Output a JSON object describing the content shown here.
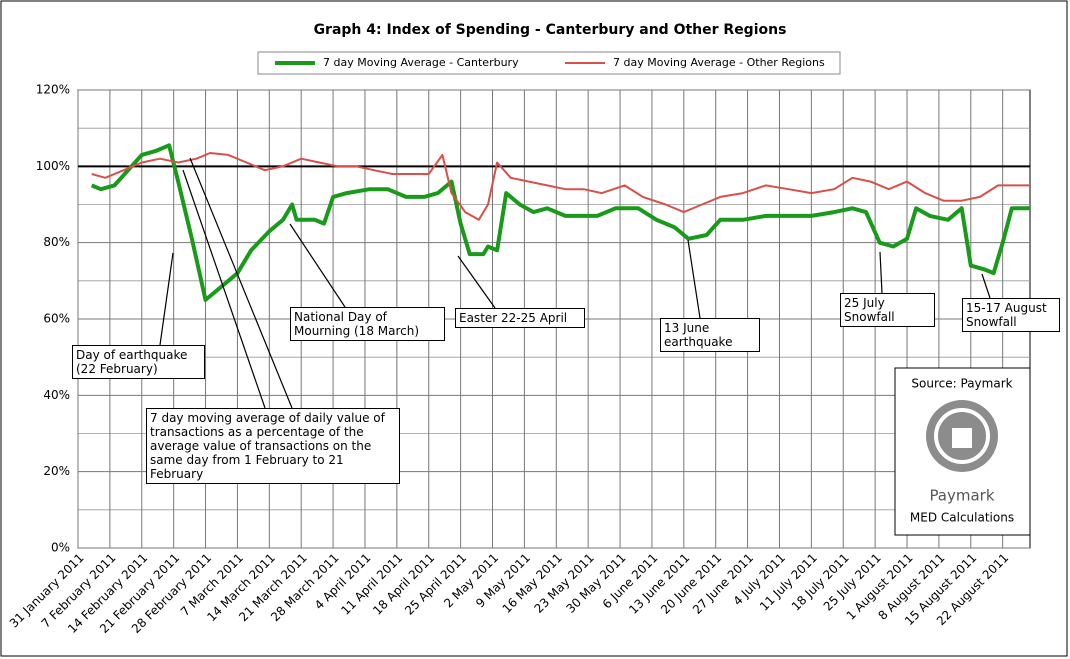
{
  "chart_data": {
    "type": "line",
    "title": "Graph 4: Index of Spending - Canterbury and Other Regions",
    "series": [
      {
        "name": "7 day Moving Average - Canterbury",
        "color": "#1a9a1a",
        "width": 4,
        "x": [
          "2011-02-03",
          "2011-02-05",
          "2011-02-08",
          "2011-02-11",
          "2011-02-14",
          "2011-02-17",
          "2011-02-20",
          "2011-02-22",
          "2011-02-25",
          "2011-02-28",
          "2011-03-03",
          "2011-03-07",
          "2011-03-10",
          "2011-03-14",
          "2011-03-17",
          "2011-03-19",
          "2011-03-20",
          "2011-03-24",
          "2011-03-26",
          "2011-03-28",
          "2011-03-31",
          "2011-04-05",
          "2011-04-09",
          "2011-04-13",
          "2011-04-17",
          "2011-04-20",
          "2011-04-23",
          "2011-04-25",
          "2011-04-27",
          "2011-04-30",
          "2011-05-01",
          "2011-05-03",
          "2011-05-05",
          "2011-05-08",
          "2011-05-11",
          "2011-05-14",
          "2011-05-18",
          "2011-05-22",
          "2011-05-25",
          "2011-05-29",
          "2011-06-03",
          "2011-06-07",
          "2011-06-11",
          "2011-06-14",
          "2011-06-18",
          "2011-06-21",
          "2011-06-26",
          "2011-07-01",
          "2011-07-06",
          "2011-07-11",
          "2011-07-16",
          "2011-07-20",
          "2011-07-23",
          "2011-07-26",
          "2011-07-29",
          "2011-08-01",
          "2011-08-03",
          "2011-08-06",
          "2011-08-10",
          "2011-08-13",
          "2011-08-15",
          "2011-08-18",
          "2011-08-20",
          "2011-08-22",
          "2011-08-24",
          "2011-08-28"
        ],
        "values": [
          95,
          94,
          95,
          99,
          103,
          104,
          105.5,
          96,
          81,
          65,
          68,
          72,
          78,
          83,
          86,
          90,
          86,
          86,
          85,
          92,
          93,
          94,
          94,
          92,
          92,
          93,
          96,
          85,
          77,
          77,
          79,
          78,
          93,
          90,
          88,
          89,
          87,
          87,
          87,
          89,
          89,
          86,
          84,
          81,
          82,
          86,
          86,
          87,
          87,
          87,
          88,
          89,
          88,
          80,
          79,
          81,
          89,
          87,
          86,
          89,
          74,
          73,
          72,
          80,
          89,
          89
        ]
      },
      {
        "name": "7 day Moving Average - Other Regions",
        "color": "#d9504a",
        "width": 2,
        "x": [
          "2011-02-03",
          "2011-02-06",
          "2011-02-10",
          "2011-02-14",
          "2011-02-18",
          "2011-02-22",
          "2011-02-26",
          "2011-03-01",
          "2011-03-05",
          "2011-03-09",
          "2011-03-13",
          "2011-03-17",
          "2011-03-21",
          "2011-03-25",
          "2011-03-29",
          "2011-04-02",
          "2011-04-06",
          "2011-04-10",
          "2011-04-14",
          "2011-04-18",
          "2011-04-21",
          "2011-04-23",
          "2011-04-26",
          "2011-04-29",
          "2011-05-01",
          "2011-05-03",
          "2011-05-06",
          "2011-05-10",
          "2011-05-14",
          "2011-05-18",
          "2011-05-22",
          "2011-05-26",
          "2011-05-31",
          "2011-06-04",
          "2011-06-09",
          "2011-06-13",
          "2011-06-17",
          "2011-06-21",
          "2011-06-26",
          "2011-07-01",
          "2011-07-06",
          "2011-07-11",
          "2011-07-16",
          "2011-07-20",
          "2011-07-24",
          "2011-07-28",
          "2011-08-01",
          "2011-08-05",
          "2011-08-09",
          "2011-08-13",
          "2011-08-17",
          "2011-08-21",
          "2011-08-25",
          "2011-08-28"
        ],
        "values": [
          98,
          97,
          99,
          101,
          102,
          101,
          102,
          103.5,
          103,
          101,
          99,
          100,
          102,
          101,
          100,
          100,
          99,
          98,
          98,
          98,
          103,
          93,
          88,
          86,
          90,
          101,
          97,
          96,
          95,
          94,
          94,
          93,
          95,
          92,
          90,
          88,
          90,
          92,
          93,
          95,
          94,
          93,
          94,
          97,
          96,
          94,
          96,
          93,
          91,
          91,
          92,
          95,
          95,
          95
        ]
      }
    ],
    "xlim": [
      "2011-01-31",
      "2011-08-28"
    ],
    "xticks": [
      {
        "value": "2011-01-31",
        "label": "31 January 2011"
      },
      {
        "value": "2011-02-07",
        "label": "7 February 2011"
      },
      {
        "value": "2011-02-14",
        "label": "14 February 2011"
      },
      {
        "value": "2011-02-21",
        "label": "21 February 2011"
      },
      {
        "value": "2011-02-28",
        "label": "28 February 2011"
      },
      {
        "value": "2011-03-07",
        "label": "7 March 2011"
      },
      {
        "value": "2011-03-14",
        "label": "14 March 2011"
      },
      {
        "value": "2011-03-21",
        "label": "21 March 2011"
      },
      {
        "value": "2011-03-28",
        "label": "28 March 2011"
      },
      {
        "value": "2011-04-04",
        "label": "4 April 2011"
      },
      {
        "value": "2011-04-11",
        "label": "11 April 2011"
      },
      {
        "value": "2011-04-18",
        "label": "18 April 2011"
      },
      {
        "value": "2011-04-25",
        "label": "25 April 2011"
      },
      {
        "value": "2011-05-02",
        "label": "2 May 2011"
      },
      {
        "value": "2011-05-09",
        "label": "9 May 2011"
      },
      {
        "value": "2011-05-16",
        "label": "16 May 2011"
      },
      {
        "value": "2011-05-23",
        "label": "23 May 2011"
      },
      {
        "value": "2011-05-30",
        "label": "30 May 2011"
      },
      {
        "value": "2011-06-06",
        "label": "6 June 2011"
      },
      {
        "value": "2011-06-13",
        "label": "13 June 2011"
      },
      {
        "value": "2011-06-20",
        "label": "20 June 2011"
      },
      {
        "value": "2011-06-27",
        "label": "27 June 2011"
      },
      {
        "value": "2011-07-04",
        "label": "4 July 2011"
      },
      {
        "value": "2011-07-11",
        "label": "11 July 2011"
      },
      {
        "value": "2011-07-18",
        "label": "18 July 2011"
      },
      {
        "value": "2011-07-25",
        "label": "25 July 2011"
      },
      {
        "value": "2011-08-01",
        "label": "1 August 2011"
      },
      {
        "value": "2011-08-08",
        "label": "8 August 2011"
      },
      {
        "value": "2011-08-15",
        "label": "15 August 2011"
      },
      {
        "value": "2011-08-22",
        "label": "22 August 2011"
      }
    ],
    "ylim": [
      0,
      120
    ],
    "yticks": [
      {
        "value": 0,
        "label": "0%"
      },
      {
        "value": 20,
        "label": "20%"
      },
      {
        "value": 40,
        "label": "40%"
      },
      {
        "value": 60,
        "label": "60%"
      },
      {
        "value": 80,
        "label": "80%"
      },
      {
        "value": 100,
        "label": "100%"
      },
      {
        "value": 120,
        "label": "120%"
      }
    ],
    "y_minor_grid": [
      10,
      30,
      50,
      70,
      90,
      110
    ],
    "reference_line": 100,
    "grid": true,
    "legend": "top",
    "annotations": [
      "Day of earthquake (22 February)",
      "7 day moving average of daily value of transactions as a percentage of the average value of transactions on the same day from 1 February to 21 February",
      "National Day of Mourning (18 March)",
      "Easter 22-25 April",
      "13 June earthquake",
      "25 July Snowfall",
      "15-17 August Snowfall"
    ],
    "source": {
      "text": "Source: Paymark",
      "logo": "Paymark",
      "note": "MED Calculations"
    }
  }
}
